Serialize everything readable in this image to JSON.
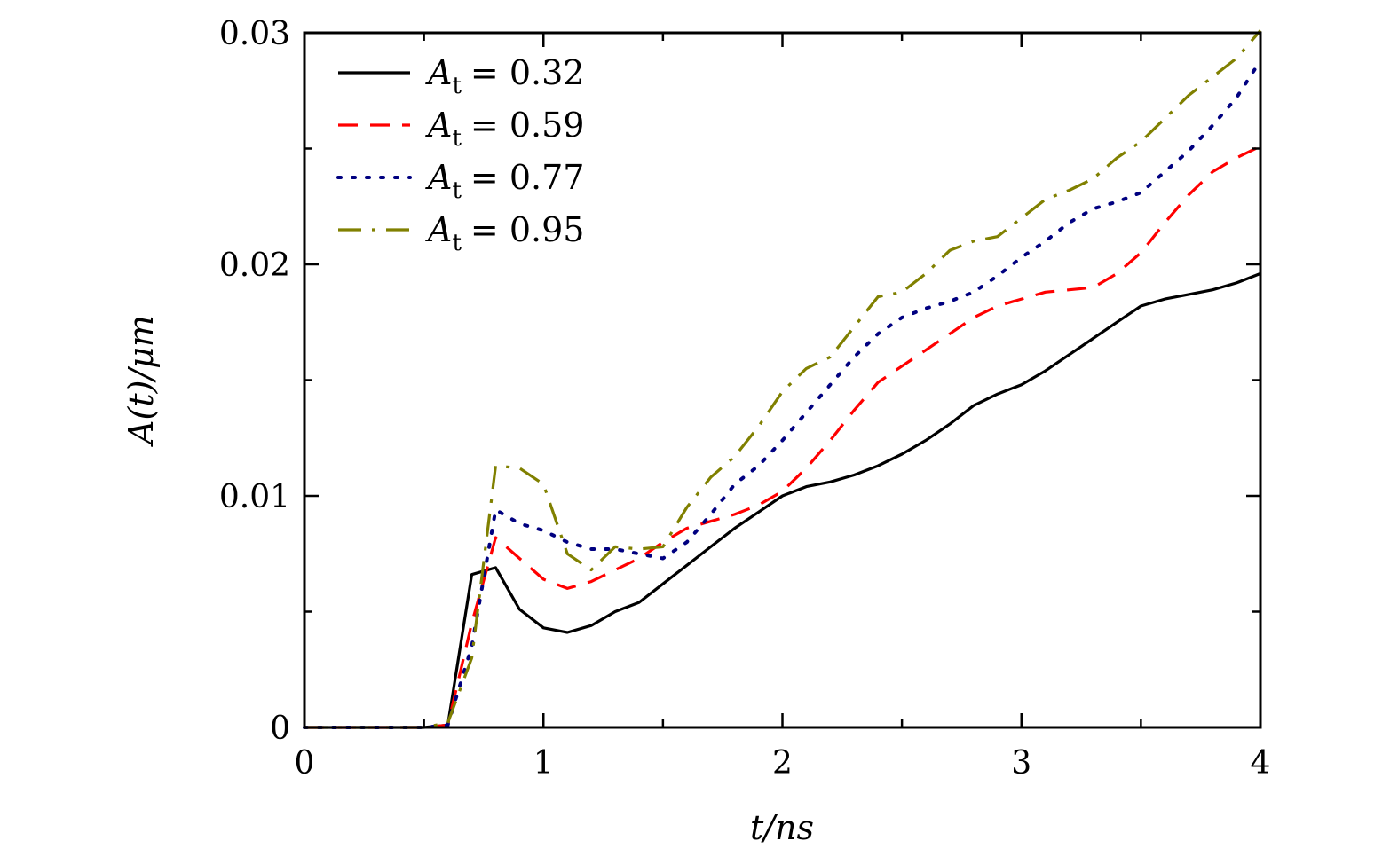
{
  "chart_data": {
    "type": "line",
    "title": "",
    "xlabel": "t/ns",
    "ylabel": "A(t)/μm",
    "xlim": [
      0,
      4
    ],
    "ylim": [
      0,
      0.03
    ],
    "xticks": [
      0,
      1,
      2,
      3,
      4
    ],
    "xtick_labels": [
      "0",
      "1",
      "2",
      "3",
      "4"
    ],
    "yticks": [
      0,
      0.01,
      0.02,
      0.03
    ],
    "ytick_labels": [
      "0",
      "0.01",
      "0.02",
      "0.03"
    ],
    "grid": false,
    "legend_position": "top-left",
    "x": [
      0,
      0.1,
      0.2,
      0.3,
      0.4,
      0.5,
      0.6,
      0.7,
      0.8,
      0.9,
      1.0,
      1.1,
      1.2,
      1.3,
      1.4,
      1.5,
      1.6,
      1.7,
      1.8,
      1.9,
      2.0,
      2.1,
      2.2,
      2.3,
      2.4,
      2.5,
      2.6,
      2.7,
      2.8,
      2.9,
      3.0,
      3.1,
      3.2,
      3.3,
      3.4,
      3.5,
      3.6,
      3.7,
      3.8,
      3.9,
      4.0
    ],
    "series": [
      {
        "name": "A_t = 0.32",
        "symbol": "A",
        "subscript": "t",
        "value_text": "= 0.32",
        "color": "#000000",
        "dash": "solid",
        "values": [
          0,
          0,
          0,
          0,
          0,
          0,
          0.0001,
          0.0066,
          0.0069,
          0.0051,
          0.0043,
          0.0041,
          0.0044,
          0.005,
          0.0054,
          0.0062,
          0.007,
          0.0078,
          0.0086,
          0.0093,
          0.01,
          0.0104,
          0.0106,
          0.0109,
          0.0113,
          0.0118,
          0.0124,
          0.0131,
          0.0139,
          0.0144,
          0.0148,
          0.0154,
          0.0161,
          0.0168,
          0.0175,
          0.0182,
          0.0185,
          0.0187,
          0.0189,
          0.0192,
          0.0196
        ]
      },
      {
        "name": "A_t = 0.59",
        "symbol": "A",
        "subscript": "t",
        "value_text": "= 0.59",
        "color": "#ff0000",
        "dash": "dashed",
        "values": [
          0,
          0,
          0,
          0,
          0,
          0,
          0.0001,
          0.0045,
          0.0082,
          0.0073,
          0.0064,
          0.006,
          0.0063,
          0.0068,
          0.0073,
          0.008,
          0.0086,
          0.0089,
          0.0092,
          0.0096,
          0.0102,
          0.0112,
          0.0124,
          0.0137,
          0.0149,
          0.0156,
          0.0163,
          0.017,
          0.0177,
          0.0182,
          0.0185,
          0.0188,
          0.0189,
          0.019,
          0.0196,
          0.0205,
          0.0218,
          0.023,
          0.024,
          0.0246,
          0.0251
        ]
      },
      {
        "name": "A_t = 0.77",
        "symbol": "A",
        "subscript": "t",
        "value_text": "= 0.77",
        "color": "#000080",
        "dash": "dotted",
        "values": [
          0,
          0,
          0,
          0,
          0,
          0,
          0.0001,
          0.0035,
          0.0094,
          0.0088,
          0.0085,
          0.008,
          0.0077,
          0.0077,
          0.0075,
          0.0073,
          0.008,
          0.0092,
          0.0105,
          0.0113,
          0.0124,
          0.0136,
          0.0148,
          0.016,
          0.017,
          0.0177,
          0.0181,
          0.0184,
          0.0188,
          0.0195,
          0.0203,
          0.021,
          0.0218,
          0.0224,
          0.0227,
          0.0231,
          0.024,
          0.0249,
          0.026,
          0.0272,
          0.0288
        ]
      },
      {
        "name": "A_t = 0.95",
        "symbol": "A",
        "subscript": "t",
        "value_text": "= 0.95",
        "color": "#808000",
        "dash": "dashdot",
        "values": [
          0,
          0,
          0,
          0,
          0,
          0,
          0.0002,
          0.003,
          0.0113,
          0.0112,
          0.0105,
          0.0075,
          0.0068,
          0.0078,
          0.0077,
          0.0078,
          0.0095,
          0.0108,
          0.0117,
          0.013,
          0.0145,
          0.0155,
          0.016,
          0.0173,
          0.0186,
          0.0188,
          0.0196,
          0.0206,
          0.021,
          0.0212,
          0.022,
          0.0228,
          0.0232,
          0.0237,
          0.0246,
          0.0253,
          0.0263,
          0.0273,
          0.0281,
          0.0289,
          0.0301
        ]
      }
    ]
  }
}
